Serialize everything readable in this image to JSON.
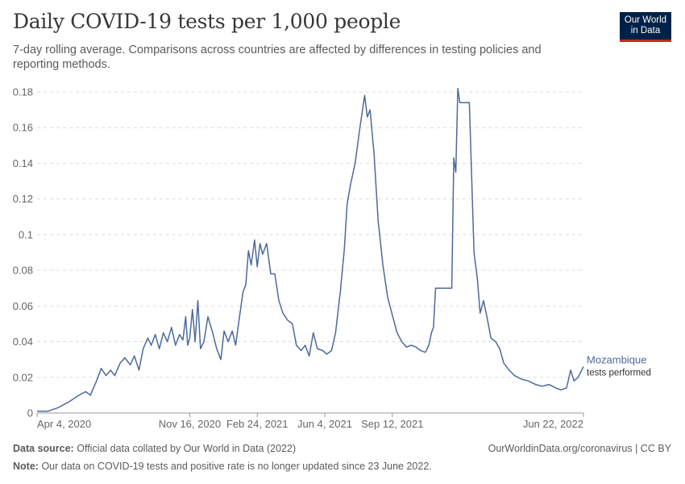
{
  "header": {
    "title": "Daily COVID-19 tests per 1,000 people",
    "subtitle": "7-day rolling average. Comparisons across countries are affected by differences in testing policies and reporting methods."
  },
  "logo": {
    "line1": "Our World",
    "line2": "in Data"
  },
  "footer": {
    "source_label": "Data source:",
    "source_text": "Official data collated by Our World in Data (2022)",
    "note_label": "Note:",
    "note_text": "Our data on COVID-19 tests and positive rate is no longer updated since 23 June 2022.",
    "attribution": "OurWorldinData.org/coronavirus | CC BY"
  },
  "colors": {
    "series": "#4c6a9c",
    "grid": "#dddddd",
    "axis": "#999999",
    "logo_bg": "#002147",
    "logo_accent": "#ce261e"
  },
  "chart_data": {
    "type": "line",
    "title": "Daily COVID-19 tests per 1,000 people",
    "subtitle": "7-day rolling average. Comparisons across countries are affected by differences in testing policies and reporting methods.",
    "xlabel": "",
    "ylabel": "",
    "ylim": [
      0,
      0.18
    ],
    "yticks": [
      0,
      0.02,
      0.04,
      0.06,
      0.08,
      0.1,
      0.12,
      0.14,
      0.16,
      0.18
    ],
    "ytick_labels": [
      "0",
      "0.02",
      "0.04",
      "0.06",
      "0.08",
      "0.1",
      "0.12",
      "0.14",
      "0.16",
      "0.18"
    ],
    "xlim": [
      "2020-04-04",
      "2022-06-22"
    ],
    "xticks": [
      "2020-04-04",
      "2020-11-16",
      "2021-02-24",
      "2021-06-04",
      "2021-09-12",
      "2022-06-22"
    ],
    "xtick_labels": [
      "Apr 4, 2020",
      "Nov 16, 2020",
      "Feb 24, 2021",
      "Jun 4, 2021",
      "Sep 12, 2021",
      "Jun 22, 2022"
    ],
    "grid": true,
    "legend": "end-label",
    "series": [
      {
        "name": "Mozambique",
        "sublabel": "tests performed",
        "points": [
          [
            "2020-04-04",
            0.001
          ],
          [
            "2020-04-20",
            0.001
          ],
          [
            "2020-05-05",
            0.003
          ],
          [
            "2020-05-20",
            0.006
          ],
          [
            "2020-06-05",
            0.01
          ],
          [
            "2020-06-15",
            0.012
          ],
          [
            "2020-06-22",
            0.01
          ],
          [
            "2020-07-01",
            0.018
          ],
          [
            "2020-07-08",
            0.025
          ],
          [
            "2020-07-15",
            0.021
          ],
          [
            "2020-07-22",
            0.024
          ],
          [
            "2020-07-28",
            0.021
          ],
          [
            "2020-08-05",
            0.028
          ],
          [
            "2020-08-12",
            0.031
          ],
          [
            "2020-08-20",
            0.027
          ],
          [
            "2020-08-26",
            0.032
          ],
          [
            "2020-09-02",
            0.024
          ],
          [
            "2020-09-08",
            0.036
          ],
          [
            "2020-09-15",
            0.042
          ],
          [
            "2020-09-20",
            0.038
          ],
          [
            "2020-09-26",
            0.044
          ],
          [
            "2020-10-02",
            0.036
          ],
          [
            "2020-10-08",
            0.045
          ],
          [
            "2020-10-14",
            0.04
          ],
          [
            "2020-10-20",
            0.048
          ],
          [
            "2020-10-26",
            0.038
          ],
          [
            "2020-11-01",
            0.044
          ],
          [
            "2020-11-06",
            0.041
          ],
          [
            "2020-11-10",
            0.054
          ],
          [
            "2020-11-13",
            0.038
          ],
          [
            "2020-11-16",
            0.042
          ],
          [
            "2020-11-20",
            0.058
          ],
          [
            "2020-11-24",
            0.04
          ],
          [
            "2020-11-28",
            0.063
          ],
          [
            "2020-12-02",
            0.036
          ],
          [
            "2020-12-07",
            0.04
          ],
          [
            "2020-12-13",
            0.054
          ],
          [
            "2020-12-20",
            0.045
          ],
          [
            "2020-12-26",
            0.036
          ],
          [
            "2021-01-01",
            0.03
          ],
          [
            "2021-01-06",
            0.046
          ],
          [
            "2021-01-12",
            0.04
          ],
          [
            "2021-01-18",
            0.046
          ],
          [
            "2021-01-23",
            0.038
          ],
          [
            "2021-01-28",
            0.052
          ],
          [
            "2021-02-03",
            0.068
          ],
          [
            "2021-02-07",
            0.072
          ],
          [
            "2021-02-11",
            0.091
          ],
          [
            "2021-02-15",
            0.083
          ],
          [
            "2021-02-20",
            0.097
          ],
          [
            "2021-02-24",
            0.082
          ],
          [
            "2021-02-28",
            0.095
          ],
          [
            "2021-03-04",
            0.089
          ],
          [
            "2021-03-10",
            0.095
          ],
          [
            "2021-03-16",
            0.078
          ],
          [
            "2021-03-22",
            0.078
          ],
          [
            "2021-03-28",
            0.063
          ],
          [
            "2021-04-03",
            0.056
          ],
          [
            "2021-04-10",
            0.052
          ],
          [
            "2021-04-17",
            0.05
          ],
          [
            "2021-04-23",
            0.038
          ],
          [
            "2021-04-30",
            0.035
          ],
          [
            "2021-05-06",
            0.038
          ],
          [
            "2021-05-12",
            0.032
          ],
          [
            "2021-05-18",
            0.045
          ],
          [
            "2021-05-24",
            0.036
          ],
          [
            "2021-06-01",
            0.035
          ],
          [
            "2021-06-07",
            0.033
          ],
          [
            "2021-06-14",
            0.035
          ],
          [
            "2021-06-20",
            0.045
          ],
          [
            "2021-06-27",
            0.068
          ],
          [
            "2021-07-03",
            0.092
          ],
          [
            "2021-07-07",
            0.117
          ],
          [
            "2021-07-12",
            0.128
          ],
          [
            "2021-07-19",
            0.14
          ],
          [
            "2021-07-26",
            0.16
          ],
          [
            "2021-08-02",
            0.178
          ],
          [
            "2021-08-06",
            0.166
          ],
          [
            "2021-08-10",
            0.17
          ],
          [
            "2021-08-16",
            0.145
          ],
          [
            "2021-08-22",
            0.108
          ],
          [
            "2021-08-29",
            0.083
          ],
          [
            "2021-09-05",
            0.065
          ],
          [
            "2021-09-12",
            0.055
          ],
          [
            "2021-09-19",
            0.045
          ],
          [
            "2021-09-26",
            0.04
          ],
          [
            "2021-10-03",
            0.037
          ],
          [
            "2021-10-10",
            0.038
          ],
          [
            "2021-10-17",
            0.037
          ],
          [
            "2021-10-24",
            0.035
          ],
          [
            "2021-10-31",
            0.034
          ],
          [
            "2021-11-05",
            0.038
          ],
          [
            "2021-11-09",
            0.045
          ],
          [
            "2021-11-12",
            0.048
          ],
          [
            "2021-11-15",
            0.07
          ],
          [
            "2021-11-27",
            0.07
          ],
          [
            "2021-12-09",
            0.07
          ],
          [
            "2021-12-12",
            0.143
          ],
          [
            "2021-12-15",
            0.135
          ],
          [
            "2021-12-18",
            0.182
          ],
          [
            "2021-12-21",
            0.174
          ],
          [
            "2022-01-04",
            0.174
          ],
          [
            "2022-01-11",
            0.09
          ],
          [
            "2022-01-16",
            0.075
          ],
          [
            "2022-01-20",
            0.056
          ],
          [
            "2022-01-25",
            0.063
          ],
          [
            "2022-01-30",
            0.054
          ],
          [
            "2022-02-05",
            0.042
          ],
          [
            "2022-02-12",
            0.04
          ],
          [
            "2022-02-18",
            0.036
          ],
          [
            "2022-02-24",
            0.028
          ],
          [
            "2022-03-04",
            0.024
          ],
          [
            "2022-03-12",
            0.021
          ],
          [
            "2022-03-22",
            0.019
          ],
          [
            "2022-04-01",
            0.018
          ],
          [
            "2022-04-12",
            0.016
          ],
          [
            "2022-04-22",
            0.015
          ],
          [
            "2022-05-02",
            0.016
          ],
          [
            "2022-05-12",
            0.014
          ],
          [
            "2022-05-20",
            0.013
          ],
          [
            "2022-05-28",
            0.014
          ],
          [
            "2022-06-03",
            0.024
          ],
          [
            "2022-06-08",
            0.018
          ],
          [
            "2022-06-14",
            0.02
          ],
          [
            "2022-06-22",
            0.026
          ]
        ]
      }
    ]
  }
}
